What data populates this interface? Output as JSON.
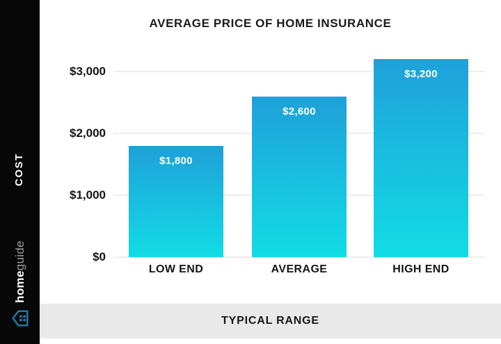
{
  "sidebar": {
    "side_axis_label": "COST",
    "brand": {
      "name_bold": "home",
      "name_light": "guide",
      "icon": "homeguide-house-icon"
    }
  },
  "footer": {
    "bottom_axis_label": "TYPICAL RANGE"
  },
  "chart_data": {
    "type": "bar",
    "title": "AVERAGE PRICE OF HOME INSURANCE",
    "xlabel": "TYPICAL RANGE",
    "ylabel": "COST",
    "categories": [
      "LOW END",
      "AVERAGE",
      "HIGH END"
    ],
    "values": [
      1800,
      2600,
      3200
    ],
    "value_labels": [
      "$1,800",
      "$2,600",
      "$3,200"
    ],
    "yticks": [
      {
        "value": 3000,
        "label": "$3,000"
      },
      {
        "value": 2000,
        "label": "$2,000"
      },
      {
        "value": 1000,
        "label": "$1,000"
      },
      {
        "value": 0,
        "label": "$0"
      }
    ],
    "ylim": [
      0,
      3400
    ],
    "grid": true,
    "legend": false
  },
  "colors": {
    "bar_gradient_top": "#1FA0D9",
    "bar_gradient_bottom": "#12DCE6",
    "sidebar_bg": "#080808",
    "strip_bg": "#E9E9E9",
    "gridline": "#EDEDED",
    "text_dark": "#1B1B1B",
    "bar_label": "#FFFFFF",
    "brand_icon_blue": "#2577A5",
    "brand_guide_gray": "#A0A0A0"
  }
}
